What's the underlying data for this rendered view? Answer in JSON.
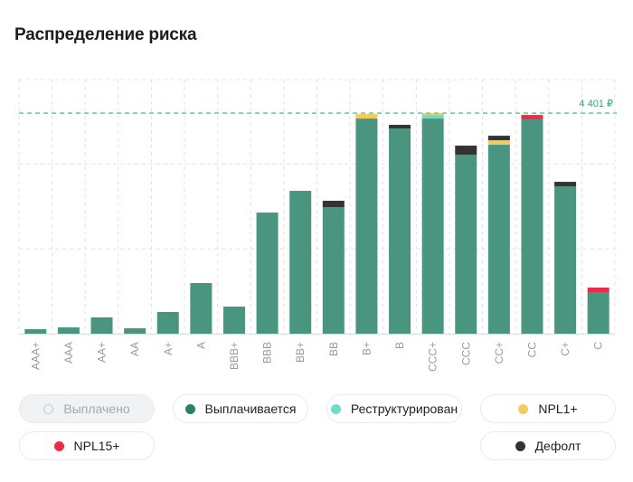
{
  "header": {
    "title": "Распределение риска"
  },
  "colors": {
    "paid_off": "#c6c8cc",
    "paying": "#4a9580",
    "paying_legend": "#258168",
    "restructured": "#6fdcc3",
    "npl1": "#f3cc5e",
    "npl15": "#ee2a49",
    "default": "#333333",
    "grid": "#e3e3e3",
    "marker": "#5fc9a7",
    "marker_text": "#2aa57e",
    "tick": "#9a9a9a"
  },
  "legend": {
    "items": [
      {
        "key": "paid_off",
        "label": "Выплачено",
        "active": false
      },
      {
        "key": "paying",
        "label": "Выплачивается",
        "active": true
      },
      {
        "key": "restructured",
        "label": "Реструктурирован",
        "active": true
      },
      {
        "key": "npl1",
        "label": "NPL1+",
        "active": true
      },
      {
        "key": "npl15",
        "label": "NPL15+",
        "active": true
      },
      {
        "key": "default",
        "label": "Дефолт",
        "active": true
      }
    ]
  },
  "chart_data": {
    "type": "bar",
    "stacked": true,
    "title": "Распределение риска",
    "xlabel": "",
    "ylabel": "",
    "ylim": [
      0,
      5070
    ],
    "grid": true,
    "categories": [
      "AAA+",
      "AAA",
      "AA+",
      "AA",
      "A+",
      "A",
      "BBB+",
      "BBB",
      "BB+",
      "BB",
      "B+",
      "B",
      "CCC+",
      "CCC",
      "CC+",
      "CC",
      "C+",
      "C"
    ],
    "series": [
      {
        "key": "paying",
        "name": "Выплачивается",
        "values": [
          90,
          126,
          325,
          108,
          433,
          1010,
          541,
          2417,
          2850,
          2526,
          4293,
          4095,
          4293,
          3572,
          3770,
          4275,
          2940,
          830
        ]
      },
      {
        "key": "restructured",
        "name": "Реструктурирован",
        "values": [
          0,
          0,
          0,
          0,
          0,
          0,
          0,
          0,
          0,
          0,
          0,
          0,
          72,
          0,
          0,
          0,
          0,
          0
        ]
      },
      {
        "key": "npl1",
        "name": "NPL1+",
        "values": [
          0,
          0,
          0,
          0,
          0,
          0,
          0,
          0,
          0,
          0,
          90,
          0,
          36,
          0,
          90,
          0,
          0,
          0
        ]
      },
      {
        "key": "npl15",
        "name": "NPL15+",
        "values": [
          0,
          0,
          0,
          0,
          0,
          0,
          0,
          0,
          0,
          0,
          0,
          0,
          0,
          0,
          0,
          90,
          0,
          90
        ]
      },
      {
        "key": "default",
        "name": "Дефолт",
        "values": [
          0,
          0,
          0,
          0,
          0,
          0,
          0,
          0,
          0,
          126,
          0,
          72,
          0,
          180,
          90,
          0,
          90,
          0
        ]
      }
    ],
    "gridlines": [
      1690,
      3380,
      5070
    ],
    "reference_line": {
      "value": 4401,
      "label": "4 401 ₽"
    },
    "legend_position": "bottom"
  }
}
